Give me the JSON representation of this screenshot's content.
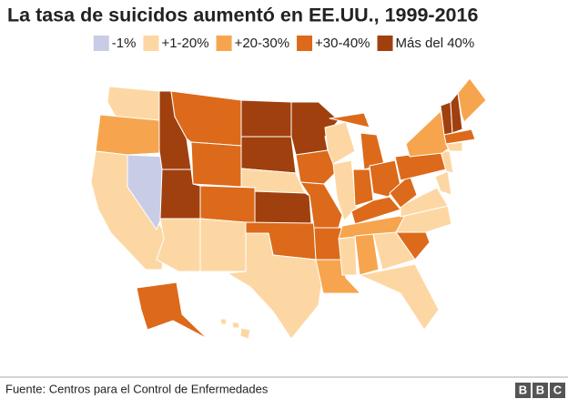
{
  "title": "La tasa de suicidos aumentó en EE.UU., 1999-2016",
  "legend": [
    {
      "label": "-1%",
      "color": "#c9cce6"
    },
    {
      "label": "+1-20%",
      "color": "#fdd7a3"
    },
    {
      "label": "+20-30%",
      "color": "#f6a54e"
    },
    {
      "label": "+30-40%",
      "color": "#dc6a1a"
    },
    {
      "label": "Más del 40%",
      "color": "#a0400e"
    }
  ],
  "source": "Fuente: Centros para el Control de Enfermedades",
  "logo": [
    "B",
    "B",
    "C"
  ]
}
